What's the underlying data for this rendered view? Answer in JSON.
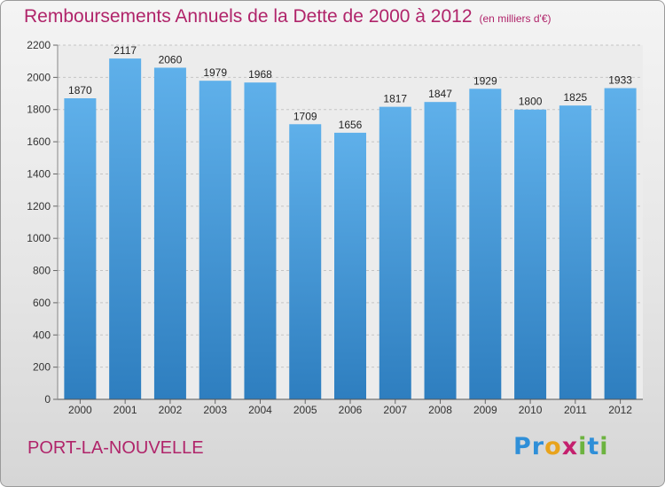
{
  "header": {
    "title": "Remboursements Annuels de la Dette de 2000 à 2012",
    "unit": "(en milliers d'€)"
  },
  "footer": {
    "commune": "PORT-LA-NOUVELLE",
    "logo": {
      "text": "Proxiti",
      "letters": [
        {
          "char": "P",
          "color": "#2f8fd8"
        },
        {
          "char": "r",
          "color": "#2f8fd8"
        },
        {
          "char": "o",
          "color": "#e8a31c"
        },
        {
          "char": "x",
          "color": "#c4206d"
        },
        {
          "char": "i",
          "color": "#6cb33f"
        },
        {
          "char": "t",
          "color": "#2f8fd8"
        },
        {
          "char": "i",
          "color": "#6cb33f"
        }
      ]
    }
  },
  "chart_data": {
    "type": "bar",
    "title": "Remboursements Annuels de la Dette de 2000 à 2012",
    "unit": "(en milliers d'€)",
    "categories": [
      "2000",
      "2001",
      "2002",
      "2003",
      "2004",
      "2005",
      "2006",
      "2007",
      "2008",
      "2009",
      "2010",
      "2011",
      "2012"
    ],
    "values": [
      1870,
      2117,
      2060,
      1979,
      1968,
      1709,
      1656,
      1817,
      1847,
      1929,
      1800,
      1825,
      1933
    ],
    "ylim": [
      0,
      2200
    ],
    "yticks": [
      0,
      200,
      400,
      600,
      800,
      1000,
      1200,
      1400,
      1600,
      1800,
      2000,
      2200
    ],
    "grid": true,
    "legend": "none",
    "colors": {
      "bar_top": "#5fb0ea",
      "bar_bottom": "#2e7ebf",
      "grid": "#c4c4c4",
      "plot_bg": "#ececec",
      "title": "#b0246a"
    }
  }
}
